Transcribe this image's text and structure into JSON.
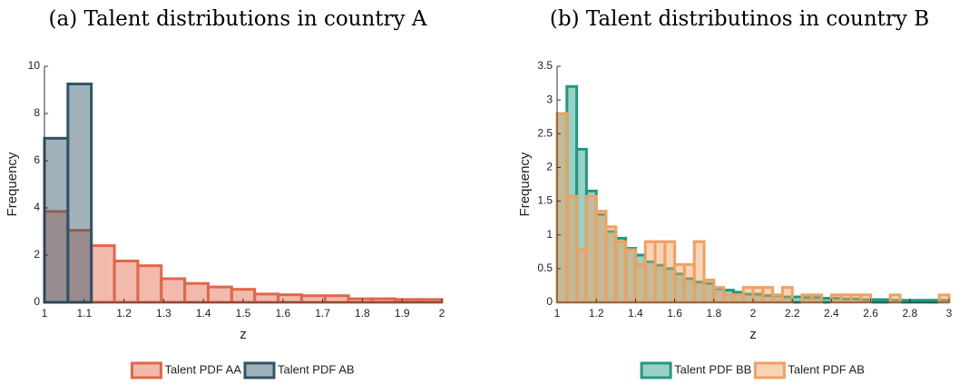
{
  "chart_data": [
    {
      "type": "histogram",
      "title": "(a) Talent distributions in country A",
      "xlabel": "z",
      "ylabel": "Frequency",
      "bins": [
        1,
        1.059,
        1.118,
        1.176,
        1.235,
        1.294,
        1.353,
        1.412,
        1.471,
        1.529,
        1.588,
        1.647,
        1.706,
        1.765,
        1.824,
        1.882,
        1.941,
        2
      ],
      "series": [
        {
          "name": "Talent PDF AA",
          "color": "#e0674a",
          "values": [
            3.85,
            3.05,
            2.4,
            1.75,
            1.55,
            1.0,
            0.8,
            0.65,
            0.55,
            0.35,
            0.32,
            0.28,
            0.28,
            0.15,
            0.15,
            0.12,
            0.12
          ]
        },
        {
          "name": "Talent PDF AB",
          "color": "#2f5468",
          "values": [
            6.95,
            9.25,
            0,
            0,
            0,
            0,
            0,
            0,
            0,
            0,
            0,
            0,
            0,
            0,
            0,
            0,
            0
          ]
        }
      ],
      "xlim": [
        1,
        2
      ],
      "xticks": [
        1,
        1.1,
        1.2,
        1.3,
        1.4,
        1.5,
        1.6,
        1.7,
        1.8,
        1.9,
        2
      ],
      "ylim": [
        0,
        10
      ],
      "yticks": [
        0,
        2,
        4,
        6,
        8,
        10
      ],
      "legend": "bottom"
    },
    {
      "type": "histogram",
      "title": "(b) Talent distributinos in country B",
      "xlabel": "z",
      "ylabel": "Frequency",
      "bins": [
        1,
        1.05,
        1.1,
        1.15,
        1.2,
        1.25,
        1.3,
        1.35,
        1.4,
        1.45,
        1.5,
        1.55,
        1.6,
        1.65,
        1.7,
        1.75,
        1.8,
        1.85,
        1.9,
        1.95,
        2,
        2.05,
        2.1,
        2.15,
        2.2,
        2.25,
        2.3,
        2.35,
        2.4,
        2.45,
        2.5,
        2.55,
        2.6,
        2.65,
        2.7,
        2.75,
        2.8,
        2.85,
        2.9,
        2.95,
        3
      ],
      "series": [
        {
          "name": "Talent PDF BB",
          "color": "#1f9a80",
          "values": [
            2.8,
            3.2,
            2.27,
            1.65,
            1.3,
            1.05,
            0.95,
            0.8,
            0.7,
            0.6,
            0.55,
            0.5,
            0.42,
            0.35,
            0.3,
            0.28,
            0.2,
            0.18,
            0.15,
            0.12,
            0.12,
            0.1,
            0.1,
            0.08,
            0.08,
            0.07,
            0.07,
            0.06,
            0.06,
            0.05,
            0.05,
            0.04,
            0.04,
            0.04,
            0.03,
            0.03,
            0.03,
            0.03,
            0.03,
            0.03
          ]
        },
        {
          "name": "Talent PDF AB",
          "color": "#f0a060",
          "values": [
            2.8,
            1.57,
            0.78,
            1.57,
            1.35,
            1.12,
            0.9,
            0.78,
            0.56,
            0.9,
            0.9,
            0.9,
            0.56,
            0.56,
            0.9,
            0.33,
            0.22,
            0.11,
            0.11,
            0.22,
            0.22,
            0.22,
            0.11,
            0.22,
            0,
            0.11,
            0.11,
            0,
            0.11,
            0.11,
            0.11,
            0.11,
            0,
            0,
            0.11,
            0,
            0,
            0,
            0,
            0.11
          ]
        }
      ],
      "xlim": [
        1,
        3
      ],
      "xticks": [
        1,
        1.2,
        1.4,
        1.6,
        1.8,
        2,
        2.2,
        2.4,
        2.6,
        2.8,
        3
      ],
      "ylim": [
        0,
        3.5
      ],
      "yticks": [
        0,
        0.5,
        1,
        1.5,
        2,
        2.5,
        3,
        3.5
      ],
      "legend": "bottom"
    }
  ]
}
